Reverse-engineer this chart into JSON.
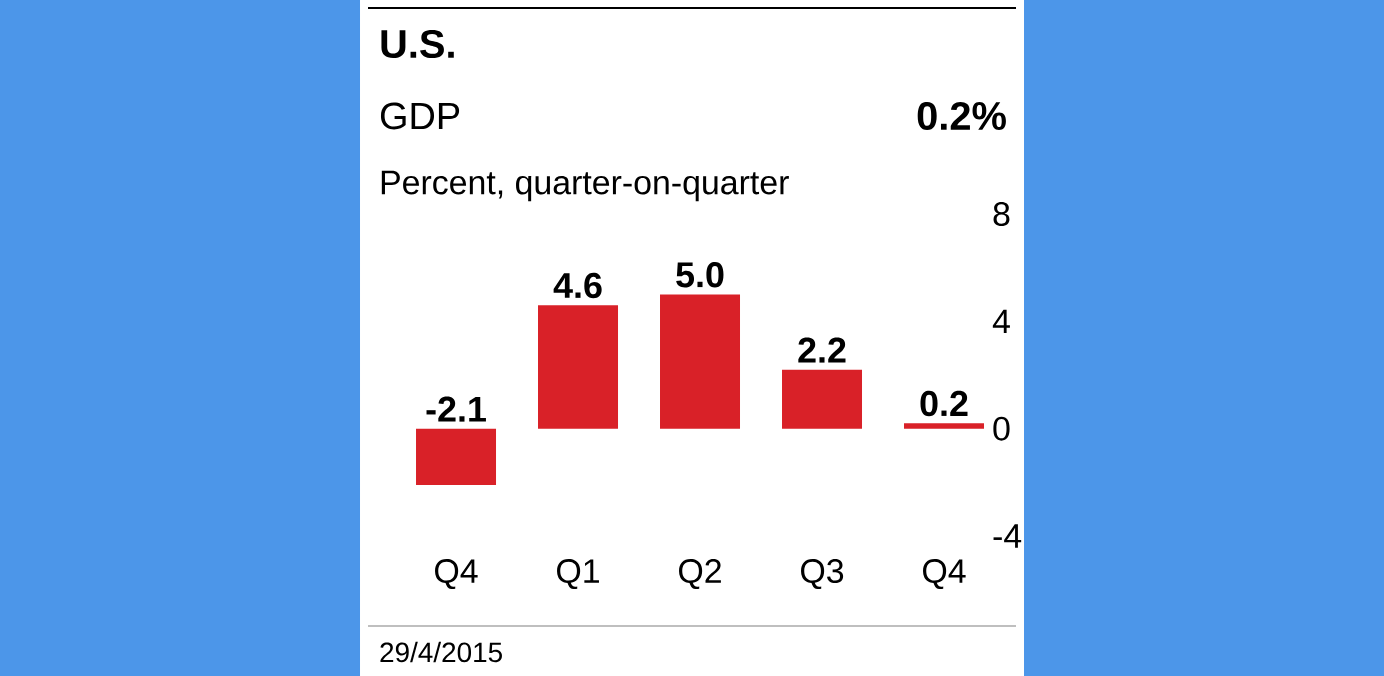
{
  "chart_data": {
    "type": "bar",
    "title": "U.S.",
    "subtitle": "GDP",
    "ylabel": "Percent, quarter-on-quarter",
    "annotations": [
      "0.2%",
      "29/4/2015"
    ],
    "categories": [
      "Q4",
      "Q1",
      "Q2",
      "Q3",
      "Q4"
    ],
    "values": [
      -2.1,
      4.6,
      5.0,
      2.2,
      0.2
    ],
    "value_labels": [
      "-2.1",
      "4.6",
      "5.0",
      "2.2",
      "0.2"
    ],
    "color": "#d92128",
    "ylim": [
      -4,
      8
    ],
    "yticks": [
      -4,
      0,
      4,
      8
    ],
    "grid": false
  }
}
